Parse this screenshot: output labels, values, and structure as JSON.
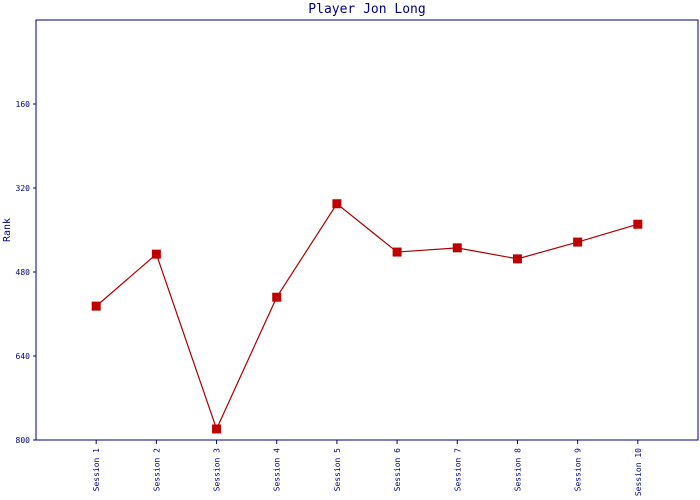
{
  "chart_data": {
    "type": "line",
    "title": "Player Jon Long",
    "y_label": "Rank",
    "categories": [
      "Session 1",
      "Session 2",
      "Session 3",
      "Session 4",
      "Session 5",
      "Session 6",
      "Session 7",
      "Session 8",
      "Session 9",
      "Session 10"
    ],
    "values": [
      545,
      446,
      779,
      528,
      350,
      442,
      434,
      455,
      423,
      389
    ],
    "color": "#aa0000",
    "marker_color": "#c00000",
    "ylim": [
      800,
      0
    ],
    "yticks": [
      800,
      640,
      480,
      320,
      160
    ]
  }
}
